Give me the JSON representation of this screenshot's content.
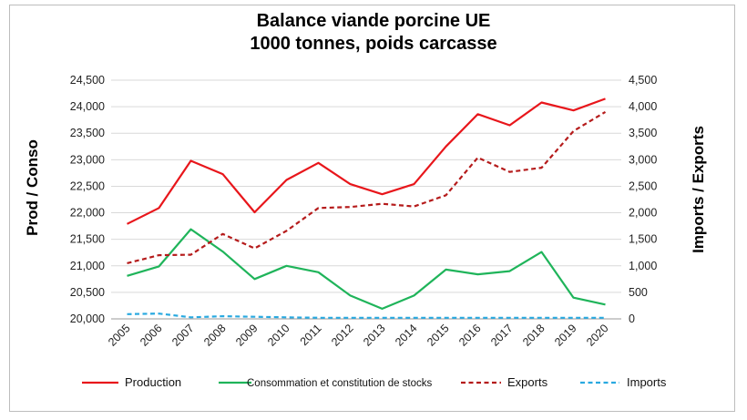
{
  "chart_data": {
    "type": "line",
    "title_line1": "Balance viande porcine UE",
    "title_line2": "1000 tonnes, poids carcasse",
    "ylabel_left": "Prod / Conso",
    "ylabel_right": "Imports / Exports",
    "x": [
      "2005",
      "2006",
      "2007",
      "2008",
      "2009",
      "2010",
      "2011",
      "2012",
      "2013",
      "2014",
      "2015",
      "2016",
      "2017",
      "2018",
      "2019",
      "2020"
    ],
    "ylim_left": [
      20000,
      24500
    ],
    "ylim_right": [
      0,
      4500
    ],
    "yticks_left": [
      "20,000",
      "20,500",
      "21,000",
      "21,500",
      "22,000",
      "22,500",
      "23,000",
      "23,500",
      "24,000",
      "24,500"
    ],
    "yticks_right": [
      "0",
      "500",
      "1,000",
      "1,500",
      "2,000",
      "2,500",
      "3,000",
      "3,500",
      "4,000",
      "4,500"
    ],
    "grid": true,
    "legend_position": "bottom",
    "series": [
      {
        "name": "Production",
        "axis": "left",
        "color": "#e8161b",
        "dash": "solid",
        "values": [
          21790,
          22090,
          22980,
          22730,
          22010,
          22620,
          22940,
          22540,
          22350,
          22540,
          23250,
          23860,
          23650,
          24080,
          23930,
          24150
        ]
      },
      {
        "name": "Consommation et constitution de stocks",
        "axis": "left",
        "color": "#1fb45a",
        "dash": "solid",
        "values": [
          20810,
          20990,
          21690,
          21270,
          20750,
          21000,
          20880,
          20440,
          20190,
          20440,
          20930,
          20840,
          20900,
          21260,
          20400,
          20270
        ]
      },
      {
        "name": "Exports",
        "axis": "right",
        "color": "#b51b1b",
        "dash": "dashed",
        "values": [
          1050,
          1200,
          1210,
          1600,
          1330,
          1660,
          2090,
          2110,
          2170,
          2120,
          2330,
          3040,
          2770,
          2850,
          3540,
          3900
        ]
      },
      {
        "name": "Imports",
        "axis": "right",
        "color": "#29a9e0",
        "dash": "dashed",
        "values": [
          90,
          100,
          30,
          50,
          40,
          30,
          20,
          20,
          20,
          20,
          20,
          20,
          20,
          20,
          20,
          20
        ]
      }
    ]
  }
}
